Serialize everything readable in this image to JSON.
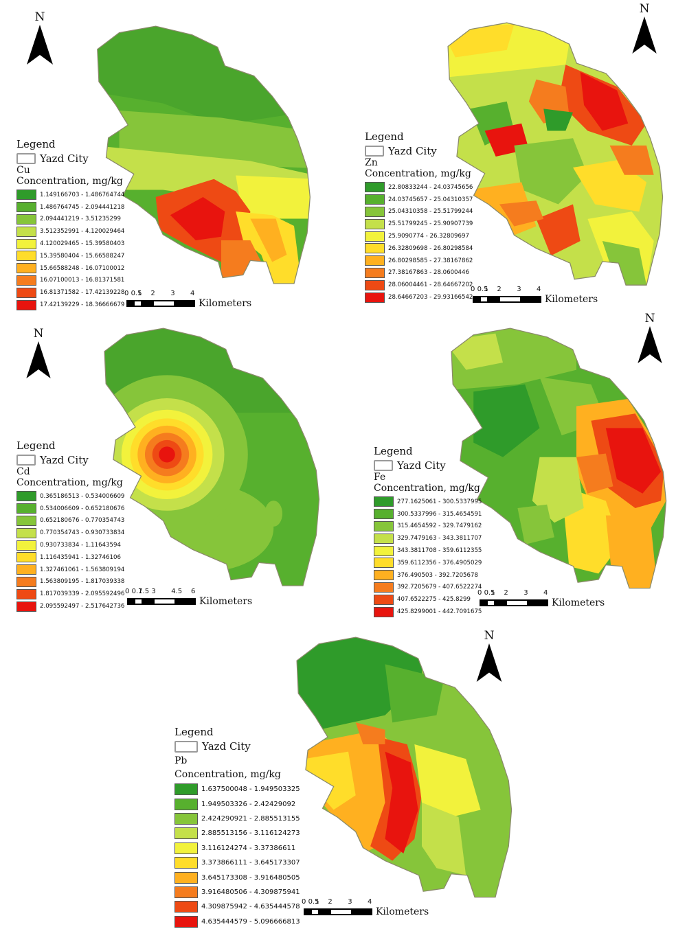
{
  "maps": [
    {
      "id": "cu",
      "north": "N",
      "legend_title": "Legend",
      "city_label": "Yazd City",
      "metal": "Cu",
      "unit_label": "Concentration, mg/kg",
      "classes": [
        {
          "range": "1.149166703 - 1.486764744",
          "color": "#2f9b2a"
        },
        {
          "range": "1.486764745 - 2.094441218",
          "color": "#57b02e"
        },
        {
          "range": "2.094441219 - 3.51235299",
          "color": "#86c53a"
        },
        {
          "range": "3.512352991 - 4.120029464",
          "color": "#c4e04a"
        },
        {
          "range": "4.120029465 - 15.39580403",
          "color": "#f2f23c"
        },
        {
          "range": "15.39580404 - 15.66588247",
          "color": "#ffdd2a"
        },
        {
          "range": "15.66588248 - 16.07100012",
          "color": "#ffb020"
        },
        {
          "range": "16.07100013 - 16.81371581",
          "color": "#f57c1e"
        },
        {
          "range": "16.81371582 - 17.42139228",
          "color": "#ee4a14"
        },
        {
          "range": "17.42139229 - 18.36666679",
          "color": "#e8140e"
        }
      ],
      "scale_ticks": [
        "0",
        "0.5",
        "1",
        "2",
        "3",
        "4"
      ],
      "scale_unit": "Kilometers"
    },
    {
      "id": "zn",
      "north": "N",
      "legend_title": "Legend",
      "city_label": "Yazd City",
      "metal": "Zn",
      "unit_label": "Concentration, mg/kg",
      "classes": [
        {
          "range": "22.80833244 - 24.03745656",
          "color": "#2f9b2a"
        },
        {
          "range": "24.03745657 - 25.04310357",
          "color": "#57b02e"
        },
        {
          "range": "25.04310358 - 25.51799244",
          "color": "#86c53a"
        },
        {
          "range": "25.51799245 - 25.90907739",
          "color": "#c4e04a"
        },
        {
          "range": "25.9090774 - 26.32809697",
          "color": "#f2f23c"
        },
        {
          "range": "26.32809698 - 26.80298584",
          "color": "#ffdd2a"
        },
        {
          "range": "26.80298585 - 27.38167862",
          "color": "#ffb020"
        },
        {
          "range": "27.38167863 - 28.0600446",
          "color": "#f57c1e"
        },
        {
          "range": "28.06004461 - 28.64667202",
          "color": "#ee4a14"
        },
        {
          "range": "28.64667203 - 29.93166542",
          "color": "#e8140e"
        }
      ],
      "scale_ticks": [
        "0",
        "0.5",
        "1",
        "2",
        "3",
        "4"
      ],
      "scale_unit": "Kilometers"
    },
    {
      "id": "cd",
      "north": "N",
      "legend_title": "Legend",
      "city_label": "Yazd City",
      "metal": "Cd",
      "unit_label": "Concentration, mg/kg",
      "classes": [
        {
          "range": "0.365186513 - 0.534006609",
          "color": "#2f9b2a"
        },
        {
          "range": "0.534006609 - 0.652180676",
          "color": "#57b02e"
        },
        {
          "range": "0.652180676 - 0.770354743",
          "color": "#86c53a"
        },
        {
          "range": "0.770354743 - 0.930733834",
          "color": "#c4e04a"
        },
        {
          "range": "0.930733834 - 1.11643594",
          "color": "#f2f23c"
        },
        {
          "range": "1.116435941 - 1.32746106",
          "color": "#ffdd2a"
        },
        {
          "range": "1.327461061 - 1.563809194",
          "color": "#ffb020"
        },
        {
          "range": "1.563809195 - 1.817039338",
          "color": "#f57c1e"
        },
        {
          "range": "1.817039339 - 2.095592496",
          "color": "#ee4a14"
        },
        {
          "range": "2.095592497 - 2.517642736",
          "color": "#e8140e"
        }
      ],
      "scale_ticks": [
        "0",
        "0.7",
        "1.5",
        "3",
        "4.5",
        "6"
      ],
      "scale_unit": "Kilometers"
    },
    {
      "id": "fe",
      "north": "N",
      "legend_title": "Legend",
      "city_label": "Yazd City",
      "metal": "Fe",
      "unit_label": "Concentration, mg/kg",
      "classes": [
        {
          "range": "277.1625061 - 300.5337995",
          "color": "#2f9b2a"
        },
        {
          "range": "300.5337996 - 315.4654591",
          "color": "#57b02e"
        },
        {
          "range": "315.4654592 - 329.7479162",
          "color": "#86c53a"
        },
        {
          "range": "329.7479163 - 343.3811707",
          "color": "#c4e04a"
        },
        {
          "range": "343.3811708 - 359.6112355",
          "color": "#f2f23c"
        },
        {
          "range": "359.6112356 - 376.4905029",
          "color": "#ffdd2a"
        },
        {
          "range": "376.490503 - 392.7205678",
          "color": "#ffb020"
        },
        {
          "range": "392.7205679 - 407.6522274",
          "color": "#f57c1e"
        },
        {
          "range": "407.6522275 - 425.8299",
          "color": "#ee4a14"
        },
        {
          "range": "425.8299001 - 442.7091675",
          "color": "#e8140e"
        }
      ],
      "scale_ticks": [
        "0",
        "0.5",
        "1",
        "2",
        "3",
        "4"
      ],
      "scale_unit": "Kilometers"
    },
    {
      "id": "pb",
      "north": "N",
      "legend_title": "Legend",
      "city_label": "Yazd City",
      "metal": "Pb",
      "unit_label": "Concentration, mg/kg",
      "classes": [
        {
          "range": "1.637500048 - 1.949503325",
          "color": "#2f9b2a"
        },
        {
          "range": "1.949503326 - 2.42429092",
          "color": "#57b02e"
        },
        {
          "range": "2.424290921 - 2.885513155",
          "color": "#86c53a"
        },
        {
          "range": "2.885513156 - 3.116124273",
          "color": "#c4e04a"
        },
        {
          "range": "3.116124274 - 3.37386611",
          "color": "#f2f23c"
        },
        {
          "range": "3.373866111 - 3.645173307",
          "color": "#ffdd2a"
        },
        {
          "range": "3.645173308 - 3.916480505",
          "color": "#ffb020"
        },
        {
          "range": "3.916480506 - 4.309875941",
          "color": "#f57c1e"
        },
        {
          "range": "4.309875942 - 4.635444578",
          "color": "#ee4a14"
        },
        {
          "range": "4.635444579 - 5.096666813",
          "color": "#e8140e"
        }
      ],
      "scale_ticks": [
        "0",
        "0.5",
        "1",
        "2",
        "3",
        "4"
      ],
      "scale_unit": "Kilometers"
    }
  ]
}
